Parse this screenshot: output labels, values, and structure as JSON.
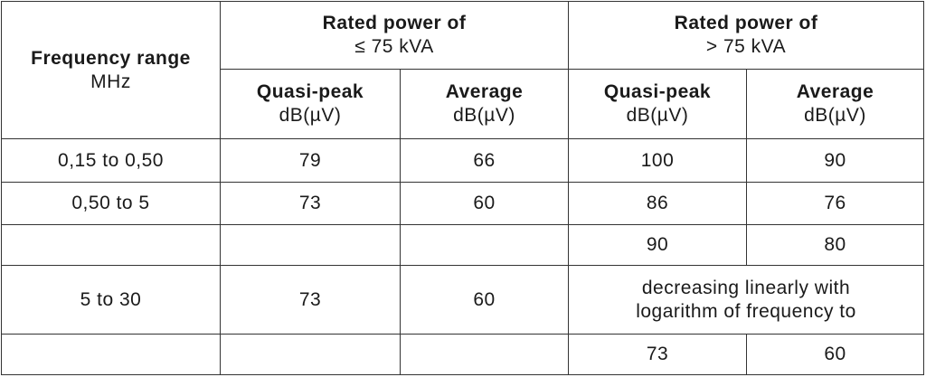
{
  "table": {
    "header": {
      "frequency": {
        "title": "Frequency range",
        "unit": "MHz"
      },
      "groups": [
        {
          "title": "Rated power of",
          "subtitle": "≤ 75 kVA"
        },
        {
          "title": "Rated power of",
          "subtitle": "> 75 kVA"
        }
      ],
      "columns": [
        {
          "title": "Quasi-peak",
          "unit": "dB(µV)"
        },
        {
          "title": "Average",
          "unit": "dB(µV)"
        },
        {
          "title": "Quasi-peak",
          "unit": "dB(µV)"
        },
        {
          "title": "Average",
          "unit": "dB(µV)"
        }
      ]
    },
    "rows": [
      [
        "0,15 to 0,50",
        79,
        66,
        100,
        90
      ],
      [
        "0,50 to 5",
        73,
        60,
        86,
        76
      ],
      [
        null,
        null,
        null,
        90,
        80
      ],
      [
        "5 to 30",
        73,
        60,
        [
          "decreasing linearly with",
          "logarithm of frequency to"
        ]
      ],
      [
        null,
        null,
        null,
        73,
        60
      ]
    ]
  }
}
